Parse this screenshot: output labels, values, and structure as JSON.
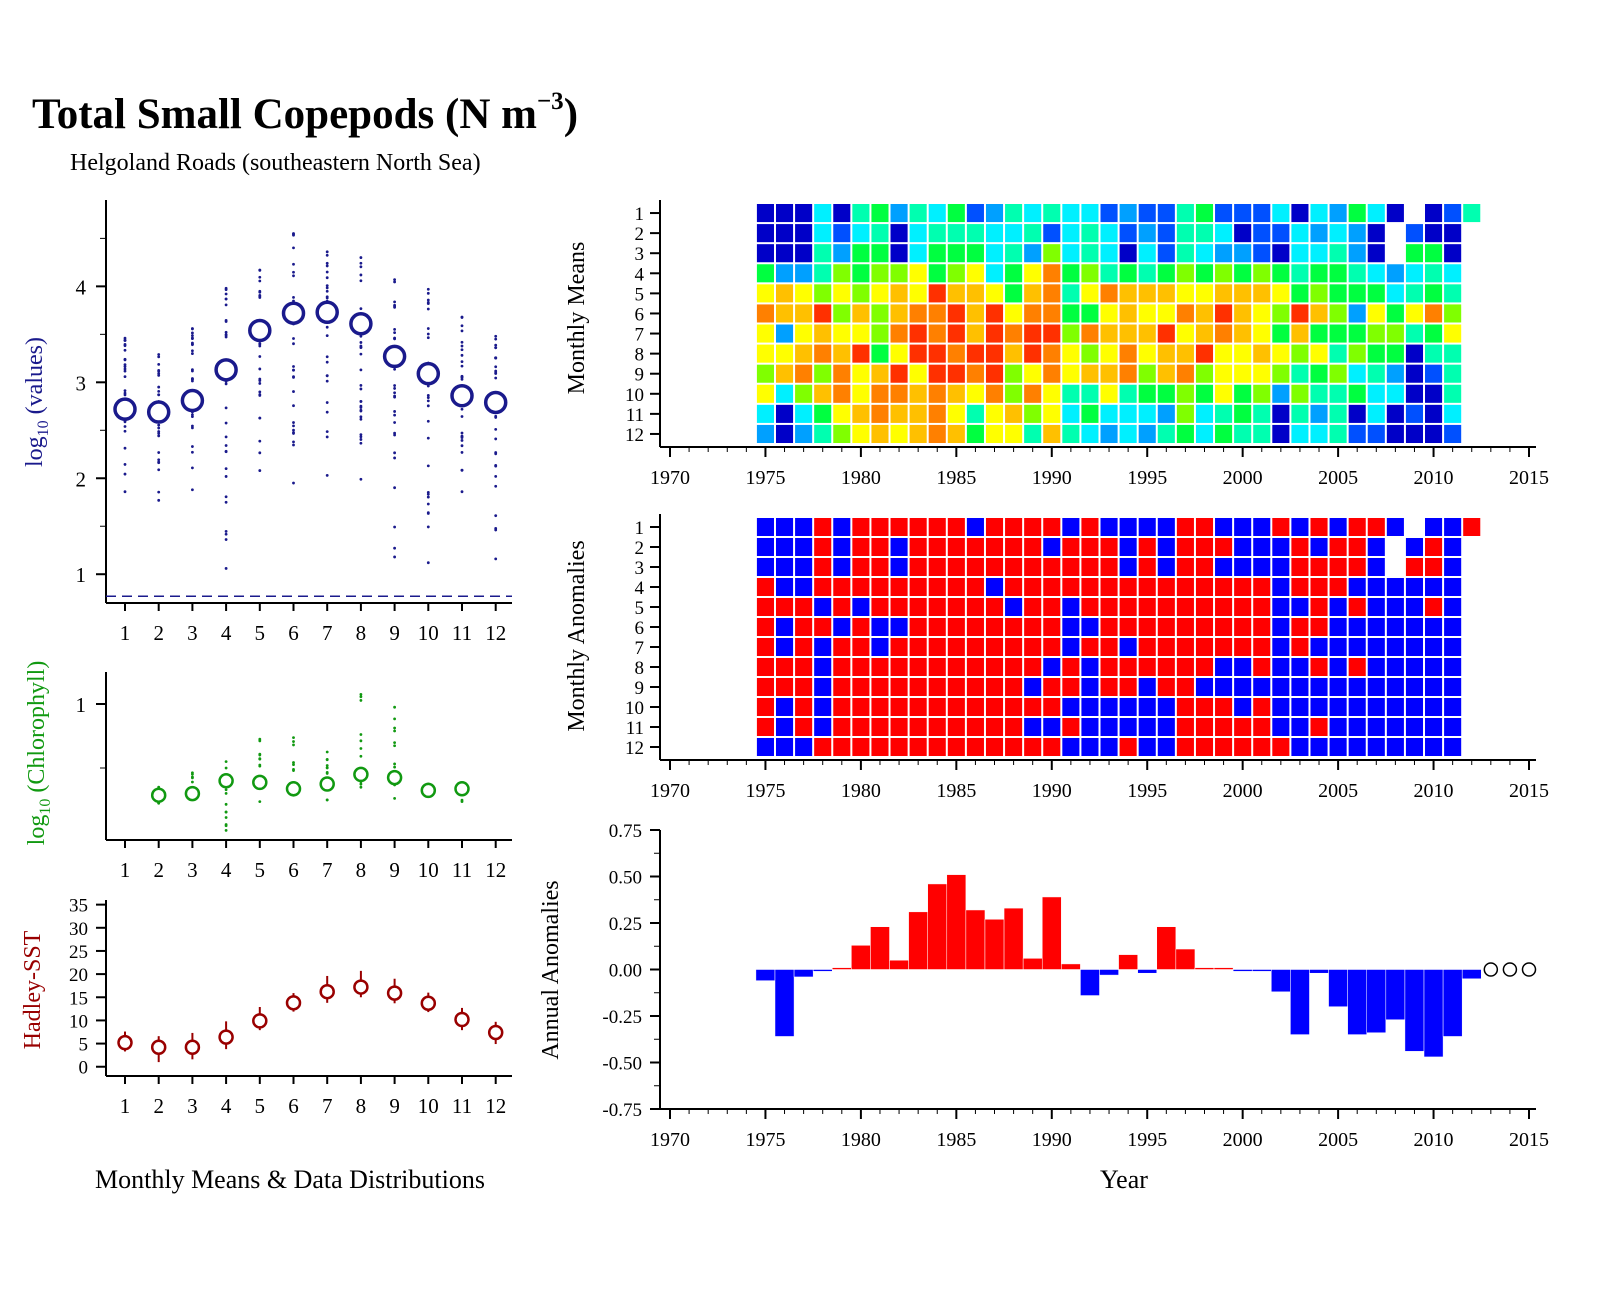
{
  "title": "Total Small Copepods (N m",
  "title_sup": "−3",
  "title_close": ")",
  "subtitle": "Helgoland Roads (southeastern North Sea)",
  "left_xlabel": "Monthly Means & Data Distributions",
  "right_xlabel": "Year",
  "colors": {
    "values": "#1a1a8c",
    "chlorophyll": "#119911",
    "sst": "#990000",
    "pos": "#ff0000",
    "neg": "#0000ff",
    "axis": "#000000"
  },
  "chart_data": [
    {
      "id": "values",
      "type": "scatter",
      "ylabel_main": "log",
      "ylabel_sub": "10",
      "ylabel_rest": " (values)",
      "x": [
        1,
        2,
        3,
        4,
        5,
        6,
        7,
        8,
        9,
        10,
        11,
        12
      ],
      "x_tick_labels": [
        "1",
        "2",
        "3",
        "4",
        "5",
        "6",
        "7",
        "8",
        "9",
        "10",
        "11",
        "12"
      ],
      "means": [
        2.72,
        2.69,
        2.81,
        3.13,
        3.54,
        3.72,
        3.73,
        3.61,
        3.27,
        3.09,
        2.86,
        2.79
      ],
      "spread_min": [
        1.86,
        1.77,
        1.88,
        1.06,
        2.08,
        1.95,
        2.03,
        1.99,
        1.18,
        1.12,
        1.86,
        1.16
      ],
      "spread_max": [
        3.46,
        3.29,
        3.56,
        3.98,
        4.17,
        4.55,
        4.36,
        4.3,
        4.07,
        3.97,
        3.68,
        3.48
      ],
      "detection_limit": 0.77,
      "ylim": [
        0.7,
        4.9
      ],
      "yticks": [
        1,
        2,
        3,
        4
      ]
    },
    {
      "id": "chlorophyll",
      "type": "scatter",
      "ylabel_main": "log",
      "ylabel_sub": "10",
      "ylabel_rest": " (Chlorophyll)",
      "x": [
        2,
        3,
        4,
        5,
        6,
        7,
        8,
        9,
        10,
        11
      ],
      "x_tick_labels": [
        "1",
        "2",
        "3",
        "4",
        "5",
        "6",
        "7",
        "8",
        "9",
        "10",
        "11",
        "12"
      ],
      "means": [
        0.43,
        0.44,
        0.52,
        0.51,
        0.47,
        0.5,
        0.56,
        0.54,
        0.46,
        0.47
      ],
      "spread_min": [
        0.38,
        0.42,
        0.21,
        0.39,
        0.43,
        0.4,
        0.48,
        0.41,
        0.43,
        0.39
      ],
      "spread_max": [
        0.48,
        0.57,
        0.64,
        0.78,
        0.79,
        0.7,
        1.06,
        0.98,
        0.5,
        0.48
      ],
      "ylim": [
        0.15,
        1.2
      ],
      "yticks": [
        1
      ]
    },
    {
      "id": "sst",
      "type": "scatter",
      "ylabel": "Hadley-SST",
      "x": [
        1,
        2,
        3,
        4,
        5,
        6,
        7,
        8,
        9,
        10,
        11,
        12
      ],
      "x_tick_labels": [
        "1",
        "2",
        "3",
        "4",
        "5",
        "6",
        "7",
        "8",
        "9",
        "10",
        "11",
        "12"
      ],
      "means": [
        5.2,
        4.2,
        4.2,
        6.4,
        9.9,
        13.8,
        16.2,
        17.2,
        15.9,
        13.7,
        10.2,
        7.4
      ],
      "err_low": [
        3.3,
        1.0,
        1.6,
        3.8,
        7.9,
        11.9,
        13.8,
        15.0,
        13.7,
        11.8,
        7.9,
        4.9
      ],
      "err_high": [
        7.6,
        6.6,
        7.3,
        9.8,
        12.9,
        15.9,
        19.6,
        20.7,
        19.0,
        16.0,
        12.7,
        9.7
      ],
      "ylim": [
        -2,
        36
      ],
      "yticks": [
        0,
        5,
        10,
        15,
        20,
        25,
        30,
        35
      ]
    },
    {
      "id": "monthly-means",
      "type": "heatmap",
      "ylabel": "Monthly Means",
      "years_start": 1975,
      "years_end": 2012,
      "xlim": [
        1970,
        2015
      ],
      "xticks": [
        1970,
        1975,
        1980,
        1985,
        1990,
        1995,
        2000,
        2005,
        2010,
        2015
      ],
      "months": [
        "1",
        "2",
        "3",
        "4",
        "5",
        "6",
        "7",
        "8",
        "9",
        "10",
        "11",
        "12"
      ],
      "palette": [
        "#0000c8",
        "#0050ff",
        "#00a0ff",
        "#00f0ff",
        "#00ffb0",
        "#00ff40",
        "#80ff00",
        "#ffff00",
        "#ffc000",
        "#ff8000",
        "#ff3000"
      ],
      "values": [
        [
          0,
          0,
          0,
          3,
          0,
          4,
          5,
          2,
          4,
          3,
          5,
          1,
          2,
          4,
          3,
          4,
          3,
          3,
          1,
          2,
          1,
          1,
          4,
          5,
          1,
          1,
          1,
          3,
          0,
          3,
          2,
          5,
          3,
          0,
          -1,
          0,
          1,
          4
        ],
        [
          0,
          0,
          0,
          3,
          1,
          3,
          4,
          0,
          3,
          4,
          4,
          4,
          3,
          3,
          4,
          1,
          3,
          4,
          3,
          1,
          2,
          1,
          4,
          4,
          3,
          0,
          1,
          1,
          3,
          2,
          3,
          2,
          0,
          -1,
          1,
          0,
          0,
          -1
        ],
        [
          0,
          0,
          0,
          4,
          2,
          5,
          5,
          0,
          3,
          5,
          5,
          5,
          3,
          4,
          2,
          6,
          3,
          4,
          3,
          0,
          3,
          1,
          4,
          3,
          2,
          2,
          1,
          0,
          3,
          3,
          4,
          2,
          0,
          -1,
          5,
          5,
          0,
          -1
        ],
        [
          5,
          2,
          2,
          4,
          6,
          5,
          6,
          6,
          7,
          5,
          6,
          7,
          3,
          5,
          7,
          9,
          5,
          6,
          4,
          5,
          4,
          5,
          6,
          5,
          6,
          5,
          6,
          5,
          4,
          5,
          5,
          4,
          3,
          2,
          3,
          4,
          3,
          -1
        ],
        [
          7,
          8,
          7,
          6,
          7,
          6,
          7,
          8,
          7,
          10,
          8,
          8,
          7,
          5,
          8,
          9,
          4,
          7,
          9,
          8,
          8,
          8,
          7,
          7,
          8,
          8,
          8,
          7,
          5,
          6,
          5,
          5,
          5,
          3,
          4,
          5,
          4,
          -1
        ],
        [
          9,
          8,
          8,
          10,
          6,
          8,
          6,
          8,
          9,
          9,
          10,
          8,
          10,
          7,
          9,
          9,
          5,
          5,
          7,
          8,
          7,
          7,
          9,
          8,
          10,
          8,
          7,
          6,
          10,
          8,
          6,
          2,
          7,
          5,
          7,
          9,
          6,
          -1
        ],
        [
          7,
          2,
          7,
          8,
          7,
          7,
          6,
          9,
          10,
          9,
          10,
          8,
          10,
          9,
          10,
          10,
          6,
          9,
          8,
          8,
          8,
          10,
          7,
          8,
          9,
          8,
          7,
          5,
          8,
          5,
          5,
          5,
          6,
          6,
          4,
          5,
          7,
          -1
        ],
        [
          7,
          7,
          8,
          9,
          8,
          10,
          5,
          7,
          10,
          10,
          9,
          10,
          10,
          8,
          10,
          9,
          7,
          6,
          7,
          9,
          7,
          8,
          8,
          10,
          7,
          7,
          8,
          7,
          6,
          7,
          4,
          6,
          5,
          5,
          0,
          4,
          4,
          -1
        ],
        [
          6,
          8,
          9,
          6,
          9,
          7,
          8,
          10,
          7,
          10,
          10,
          9,
          10,
          6,
          7,
          9,
          7,
          8,
          8,
          9,
          6,
          8,
          9,
          6,
          7,
          7,
          7,
          6,
          4,
          5,
          6,
          3,
          4,
          2,
          0,
          1,
          4,
          -1
        ],
        [
          7,
          3,
          6,
          8,
          9,
          7,
          9,
          9,
          8,
          9,
          8,
          7,
          9,
          6,
          9,
          7,
          4,
          4,
          7,
          4,
          5,
          5,
          6,
          5,
          7,
          5,
          6,
          2,
          6,
          4,
          4,
          5,
          3,
          3,
          0,
          0,
          4,
          -1
        ],
        [
          3,
          0,
          3,
          5,
          7,
          8,
          9,
          8,
          8,
          9,
          7,
          4,
          7,
          8,
          6,
          7,
          3,
          5,
          3,
          3,
          3,
          2,
          6,
          3,
          4,
          5,
          4,
          0,
          4,
          2,
          4,
          0,
          3,
          0,
          1,
          0,
          3,
          -1
        ],
        [
          2,
          0,
          2,
          4,
          6,
          7,
          8,
          7,
          8,
          9,
          8,
          5,
          7,
          7,
          4,
          8,
          4,
          3,
          2,
          3,
          2,
          4,
          5,
          3,
          5,
          4,
          4,
          0,
          3,
          3,
          4,
          1,
          1,
          0,
          0,
          0,
          1,
          -1
        ]
      ]
    },
    {
      "id": "monthly-anomalies",
      "type": "heatmap",
      "ylabel": "Monthly Anomalies",
      "years_start": 1975,
      "years_end": 2012,
      "xlim": [
        1970,
        2015
      ],
      "xticks": [
        1970,
        1975,
        1980,
        1985,
        1990,
        1995,
        2000,
        2005,
        2010,
        2015
      ],
      "months": [
        "1",
        "2",
        "3",
        "4",
        "5",
        "6",
        "7",
        "8",
        "9",
        "10",
        "11",
        "12"
      ],
      "values": [
        [
          0,
          0,
          0,
          1,
          0,
          1,
          1,
          1,
          1,
          1,
          1,
          0,
          1,
          1,
          1,
          1,
          0,
          1,
          0,
          0,
          0,
          0,
          1,
          1,
          0,
          0,
          0,
          1,
          0,
          1,
          0,
          1,
          1,
          0,
          -1,
          0,
          0,
          1
        ],
        [
          0,
          0,
          0,
          1,
          0,
          1,
          1,
          0,
          1,
          1,
          1,
          1,
          1,
          1,
          1,
          0,
          1,
          1,
          1,
          0,
          1,
          0,
          1,
          1,
          1,
          0,
          0,
          0,
          1,
          0,
          1,
          1,
          0,
          -1,
          0,
          1,
          0,
          -1
        ],
        [
          0,
          0,
          0,
          1,
          0,
          1,
          1,
          0,
          1,
          1,
          1,
          1,
          1,
          1,
          1,
          1,
          1,
          1,
          1,
          0,
          1,
          0,
          1,
          1,
          0,
          0,
          0,
          0,
          1,
          1,
          1,
          1,
          0,
          -1,
          1,
          1,
          0,
          -1
        ],
        [
          1,
          0,
          0,
          1,
          1,
          1,
          1,
          1,
          1,
          1,
          1,
          1,
          0,
          1,
          1,
          1,
          1,
          1,
          1,
          1,
          1,
          1,
          1,
          1,
          1,
          1,
          1,
          0,
          1,
          1,
          1,
          0,
          0,
          0,
          0,
          0,
          0,
          -1
        ],
        [
          1,
          1,
          1,
          0,
          1,
          0,
          1,
          1,
          1,
          1,
          1,
          1,
          1,
          0,
          1,
          1,
          0,
          1,
          1,
          1,
          1,
          1,
          1,
          1,
          1,
          1,
          1,
          0,
          0,
          1,
          0,
          1,
          0,
          0,
          0,
          1,
          0,
          -1
        ],
        [
          1,
          0,
          1,
          1,
          0,
          1,
          0,
          0,
          1,
          1,
          1,
          1,
          1,
          1,
          1,
          1,
          0,
          0,
          1,
          1,
          1,
          1,
          1,
          1,
          1,
          1,
          1,
          0,
          1,
          1,
          0,
          0,
          0,
          0,
          0,
          0,
          0,
          -1
        ],
        [
          1,
          0,
          1,
          0,
          1,
          1,
          0,
          1,
          1,
          1,
          1,
          1,
          1,
          1,
          1,
          1,
          0,
          1,
          1,
          0,
          1,
          1,
          1,
          1,
          1,
          1,
          1,
          0,
          1,
          0,
          0,
          0,
          0,
          0,
          0,
          0,
          0,
          -1
        ],
        [
          1,
          1,
          1,
          0,
          1,
          1,
          1,
          1,
          1,
          1,
          1,
          1,
          1,
          1,
          1,
          0,
          1,
          0,
          1,
          1,
          1,
          1,
          1,
          1,
          0,
          0,
          1,
          0,
          0,
          1,
          0,
          1,
          0,
          0,
          0,
          0,
          0,
          -1
        ],
        [
          1,
          1,
          1,
          0,
          1,
          1,
          1,
          1,
          1,
          1,
          1,
          1,
          1,
          1,
          0,
          1,
          1,
          0,
          1,
          1,
          0,
          1,
          1,
          0,
          0,
          0,
          0,
          0,
          0,
          0,
          0,
          0,
          0,
          0,
          0,
          0,
          0,
          -1
        ],
        [
          1,
          0,
          1,
          0,
          1,
          1,
          1,
          1,
          1,
          1,
          1,
          1,
          1,
          1,
          1,
          1,
          0,
          0,
          0,
          0,
          0,
          0,
          1,
          1,
          1,
          0,
          1,
          0,
          0,
          0,
          0,
          0,
          0,
          0,
          0,
          0,
          0,
          -1
        ],
        [
          1,
          0,
          1,
          0,
          1,
          1,
          1,
          1,
          1,
          1,
          1,
          1,
          1,
          1,
          0,
          0,
          1,
          0,
          0,
          0,
          0,
          0,
          1,
          1,
          1,
          1,
          1,
          0,
          0,
          1,
          0,
          0,
          0,
          0,
          0,
          0,
          0,
          -1
        ],
        [
          0,
          0,
          0,
          1,
          1,
          1,
          1,
          1,
          1,
          1,
          1,
          1,
          1,
          1,
          1,
          1,
          0,
          0,
          0,
          1,
          0,
          0,
          1,
          1,
          1,
          1,
          1,
          1,
          0,
          0,
          0,
          0,
          0,
          0,
          0,
          0,
          0,
          -1
        ]
      ]
    },
    {
      "id": "annual-anomalies",
      "type": "bar",
      "ylabel": "Annual Anomalies",
      "years": [
        1975,
        1976,
        1977,
        1978,
        1979,
        1980,
        1981,
        1982,
        1983,
        1984,
        1985,
        1986,
        1987,
        1988,
        1989,
        1990,
        1991,
        1992,
        1993,
        1994,
        1995,
        1996,
        1997,
        1998,
        1999,
        2000,
        2001,
        2002,
        2003,
        2004,
        2005,
        2006,
        2007,
        2008,
        2009,
        2010,
        2011,
        2012
      ],
      "values": [
        -0.06,
        -0.36,
        -0.04,
        -0.01,
        0.01,
        0.13,
        0.23,
        0.05,
        0.31,
        0.46,
        0.51,
        0.32,
        0.27,
        0.33,
        0.06,
        0.39,
        0.03,
        -0.14,
        -0.03,
        0.08,
        -0.02,
        0.23,
        0.11,
        0.01,
        0.01,
        -0.01,
        -0.01,
        -0.12,
        -0.35,
        -0.02,
        -0.2,
        -0.35,
        -0.34,
        -0.27,
        -0.44,
        -0.47,
        -0.36,
        -0.05
      ],
      "missing_years": [
        2013,
        2014,
        2015
      ],
      "xlim": [
        1970,
        2015
      ],
      "xticks": [
        1970,
        1975,
        1980,
        1985,
        1990,
        1995,
        2000,
        2005,
        2010,
        2015
      ],
      "ylim": [
        -0.75,
        0.75
      ],
      "yticks": [
        -0.75,
        -0.5,
        -0.25,
        0,
        0.25,
        0.5,
        0.75
      ],
      "ytick_labels": [
        "-0.75",
        "-0.50",
        "-0.25",
        "0.00",
        "0.25",
        "0.50",
        "0.75"
      ]
    }
  ]
}
